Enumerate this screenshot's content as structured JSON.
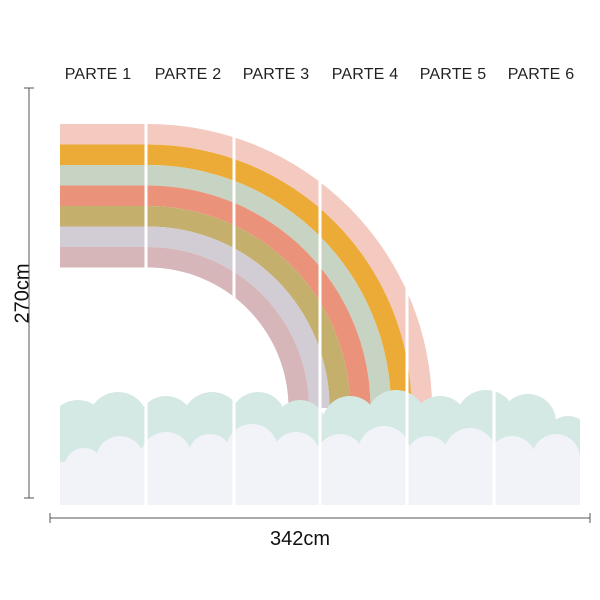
{
  "panels": [
    {
      "label": "PARTE 1"
    },
    {
      "label": "PARTE 2"
    },
    {
      "label": "PARTE 3"
    },
    {
      "label": "PARTE 4"
    },
    {
      "label": "PARTE 5"
    },
    {
      "label": "PARTE 6"
    }
  ],
  "dimensions": {
    "width_label": "342cm",
    "height_label": "270cm"
  },
  "colors": {
    "bands": [
      "#f3c9c0",
      "#ecab36",
      "#c7d3c3",
      "#ea937a",
      "#c4b06c",
      "#d2ccd4",
      "#d7b6b9"
    ],
    "cloud_back": "#d4e8e4",
    "cloud_front": "#f1f3f8",
    "dimension_line": "#555555"
  }
}
